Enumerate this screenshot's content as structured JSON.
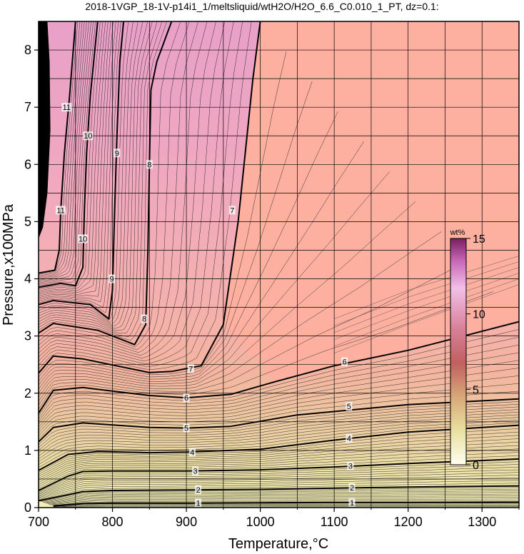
{
  "chart_data": {
    "type": "contour",
    "title": "2018-1VGP_18-1V-p14i1_1/meltsliquid/wtH2O/H2O_6.6_C0.010_1_PT, dz=0.1:",
    "xlabel": "Temperature,°C",
    "ylabel": "Pressure,x100MPa",
    "xlim": [
      700,
      1350
    ],
    "ylim": [
      0,
      8.5
    ],
    "xticks": [
      700,
      800,
      900,
      1000,
      1100,
      1200,
      1300
    ],
    "yticks": [
      0,
      1,
      2,
      3,
      4,
      5,
      6,
      7,
      8
    ],
    "grid": true,
    "colorbar": {
      "label": "wt%",
      "range": [
        0,
        15
      ],
      "ticks": [
        0,
        5,
        10,
        15
      ],
      "colors": [
        "#fffff0",
        "#e8d890",
        "#c8906a",
        "#c86070",
        "#e4a0c8",
        "#8a2e6e"
      ],
      "placement": "inside-right"
    },
    "field_colors": {
      "saturated_region": "#fdb0a0",
      "low_pressure": "#f8f0b0"
    },
    "contour_interval": 0.1,
    "major_contours": [
      {
        "level": 1,
        "points": [
          [
            720,
            0.03
          ],
          [
            760,
            0.07
          ],
          [
            800,
            0.08
          ],
          [
            900,
            0.08
          ],
          [
            1000,
            0.085
          ],
          [
            1100,
            0.09
          ],
          [
            1200,
            0.09
          ],
          [
            1350,
            0.095
          ]
        ]
      },
      {
        "level": 2,
        "points": [
          [
            700,
            0.12
          ],
          [
            760,
            0.28
          ],
          [
            800,
            0.3
          ],
          [
            900,
            0.31
          ],
          [
            1000,
            0.32
          ],
          [
            1100,
            0.34
          ],
          [
            1200,
            0.36
          ],
          [
            1350,
            0.38
          ]
        ]
      },
      {
        "level": 3,
        "points": [
          [
            700,
            0.3
          ],
          [
            740,
            0.55
          ],
          [
            760,
            0.63
          ],
          [
            800,
            0.64
          ],
          [
            900,
            0.64
          ],
          [
            1000,
            0.66
          ],
          [
            1100,
            0.71
          ],
          [
            1200,
            0.77
          ],
          [
            1350,
            0.85
          ]
        ]
      },
      {
        "level": 4,
        "points": [
          [
            700,
            0.65
          ],
          [
            740,
            0.93
          ],
          [
            780,
            0.98
          ],
          [
            850,
            0.96
          ],
          [
            900,
            0.97
          ],
          [
            1000,
            1.02
          ],
          [
            1100,
            1.18
          ],
          [
            1200,
            1.32
          ],
          [
            1350,
            1.44
          ]
        ]
      },
      {
        "level": 5,
        "points": [
          [
            700,
            1.15
          ],
          [
            720,
            1.4
          ],
          [
            760,
            1.48
          ],
          [
            850,
            1.4
          ],
          [
            900,
            1.39
          ],
          [
            960,
            1.42
          ],
          [
            1050,
            1.62
          ],
          [
            1200,
            1.8
          ],
          [
            1350,
            1.9
          ]
        ]
      },
      {
        "level": 6,
        "points": [
          [
            700,
            1.65
          ],
          [
            720,
            2.05
          ],
          [
            760,
            2.1
          ],
          [
            850,
            1.96
          ],
          [
            900,
            1.92
          ],
          [
            960,
            1.98
          ],
          [
            1020,
            2.2
          ],
          [
            1100,
            2.48
          ],
          [
            1200,
            2.75
          ],
          [
            1350,
            3.25
          ]
        ]
      },
      {
        "level": 7,
        "points": [
          [
            700,
            2.35
          ],
          [
            720,
            2.65
          ],
          [
            760,
            2.6
          ],
          [
            850,
            2.36
          ],
          [
            880,
            2.38
          ],
          [
            920,
            2.48
          ],
          [
            950,
            3.2
          ],
          [
            970,
            5.0
          ],
          [
            990,
            7.5
          ],
          [
            1000,
            8.5
          ]
        ]
      },
      {
        "level": 8,
        "points": [
          [
            700,
            3.05
          ],
          [
            720,
            3.22
          ],
          [
            780,
            3.1
          ],
          [
            830,
            2.85
          ],
          [
            845,
            3.2
          ],
          [
            848,
            4.5
          ],
          [
            850,
            6.0
          ],
          [
            852,
            7.3
          ],
          [
            860,
            7.8
          ],
          [
            880,
            8.5
          ]
        ]
      },
      {
        "level": 9,
        "points": [
          [
            700,
            3.55
          ],
          [
            720,
            3.62
          ],
          [
            770,
            3.55
          ],
          [
            795,
            3.3
          ],
          [
            800,
            3.8
          ],
          [
            803,
            5.2
          ],
          [
            806,
            6.5
          ],
          [
            810,
            7.8
          ],
          [
            815,
            8.5
          ]
        ]
      },
      {
        "level": 10,
        "points": [
          [
            700,
            3.85
          ],
          [
            730,
            3.92
          ],
          [
            750,
            3.88
          ],
          [
            760,
            4.2
          ],
          [
            762,
            5.2
          ],
          [
            765,
            6.2
          ],
          [
            770,
            7.2
          ],
          [
            780,
            8.5
          ]
        ]
      },
      {
        "level": 11,
        "points": [
          [
            700,
            4.1
          ],
          [
            722,
            4.15
          ],
          [
            728,
            4.5
          ],
          [
            730,
            5.2
          ],
          [
            735,
            6.2
          ],
          [
            742,
            7.2
          ],
          [
            750,
            8.5
          ]
        ]
      }
    ],
    "contour_labels": [
      {
        "text": "1",
        "x": 916,
        "y": 0.08
      },
      {
        "text": "1",
        "x": 1124,
        "y": 0.09
      },
      {
        "text": "2",
        "x": 916,
        "y": 0.31
      },
      {
        "text": "2",
        "x": 1124,
        "y": 0.35
      },
      {
        "text": "3",
        "x": 912,
        "y": 0.64
      },
      {
        "text": "3",
        "x": 1122,
        "y": 0.73
      },
      {
        "text": "4",
        "x": 908,
        "y": 0.97
      },
      {
        "text": "4",
        "x": 1120,
        "y": 1.21
      },
      {
        "text": "5",
        "x": 900,
        "y": 1.39
      },
      {
        "text": "5",
        "x": 1120,
        "y": 1.77
      },
      {
        "text": "6",
        "x": 900,
        "y": 1.92
      },
      {
        "text": "6",
        "x": 1114,
        "y": 2.55
      },
      {
        "text": "7",
        "x": 906,
        "y": 2.43
      },
      {
        "text": "7",
        "x": 962,
        "y": 5.2
      },
      {
        "text": "8",
        "x": 843,
        "y": 3.3
      },
      {
        "text": "8",
        "x": 850,
        "y": 6.0
      },
      {
        "text": "9",
        "x": 799,
        "y": 4.0
      },
      {
        "text": "9",
        "x": 806,
        "y": 6.2
      },
      {
        "text": "10",
        "x": 760,
        "y": 4.7
      },
      {
        "text": "10",
        "x": 767,
        "y": 6.5
      },
      {
        "text": "11",
        "x": 730,
        "y": 5.2
      },
      {
        "text": "11",
        "x": 738,
        "y": 7.0
      }
    ]
  }
}
